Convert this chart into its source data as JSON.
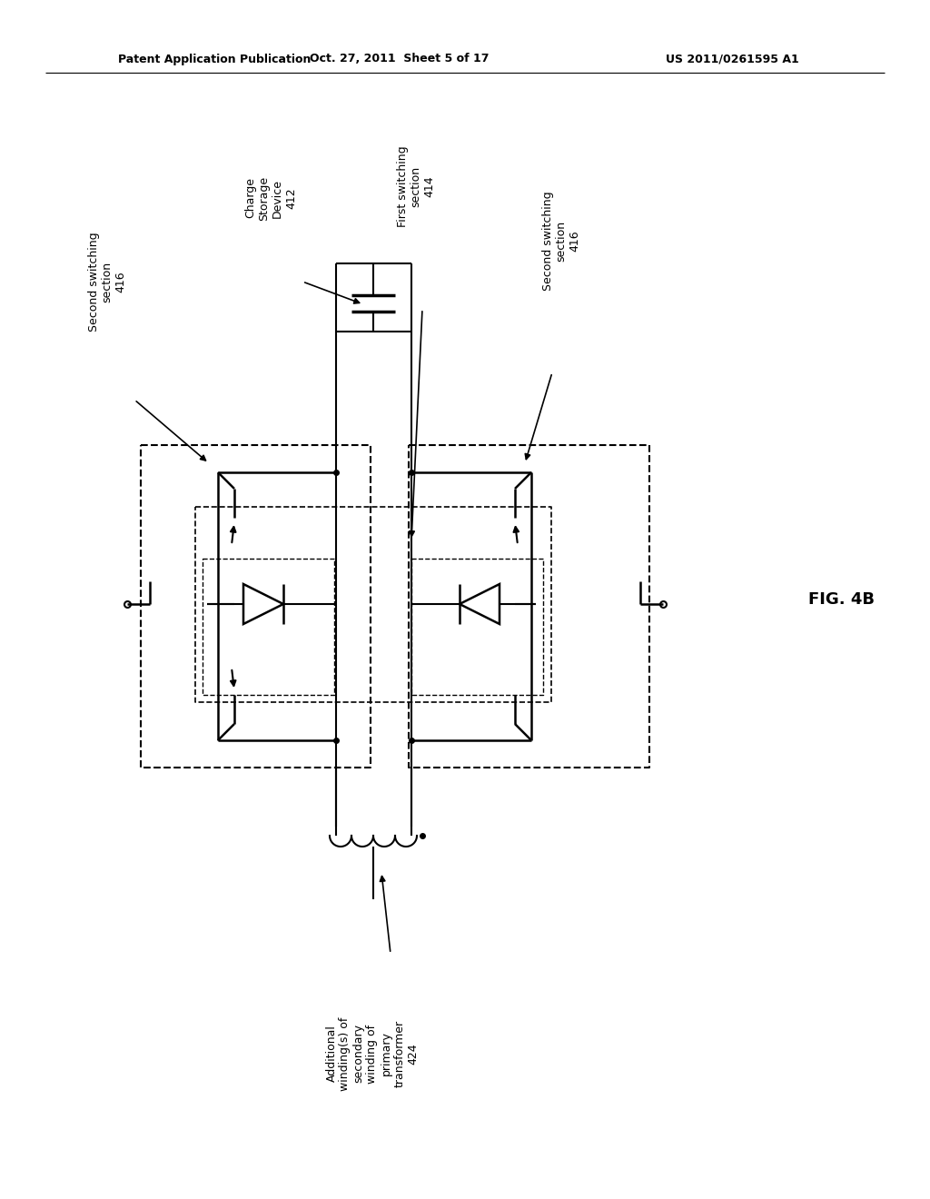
{
  "title_left": "Patent Application Publication",
  "title_mid": "Oct. 27, 2011  Sheet 5 of 17",
  "title_right": "US 2011/0261595 A1",
  "fig_label": "FIG. 4B",
  "bg_color": "#ffffff"
}
